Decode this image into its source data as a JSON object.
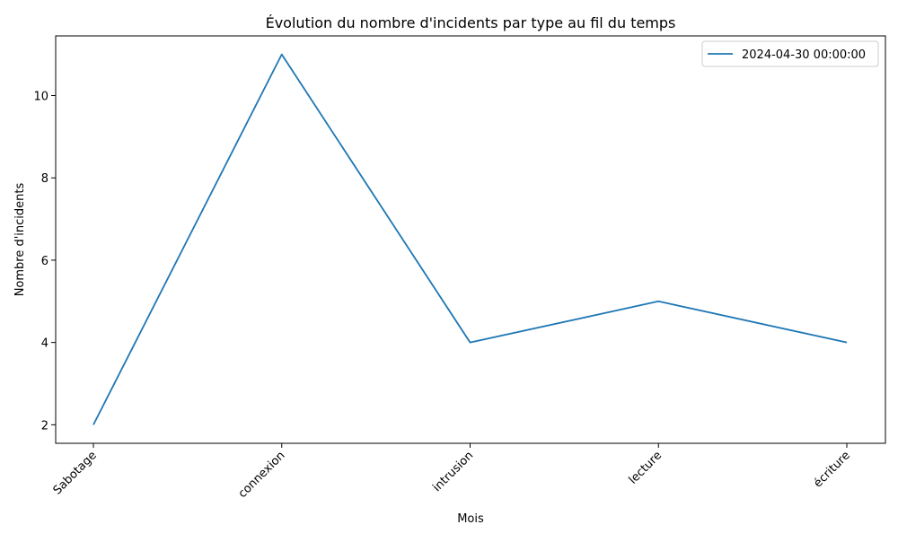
{
  "chart_data": {
    "type": "line",
    "title": "Évolution du nombre d'incidents par type au fil du temps",
    "xlabel": "Mois",
    "ylabel": "Nombre d'incidents",
    "categories": [
      "Sabotage",
      "connexion",
      "intrusion",
      "lecture",
      "écriture"
    ],
    "series": [
      {
        "name": "2024-04-30 00:00:00",
        "values": [
          2,
          11,
          4,
          5,
          4
        ],
        "color": "#1f77b4"
      }
    ],
    "yticks": [
      2,
      4,
      6,
      8,
      10
    ],
    "ylim": [
      1.55,
      11.45
    ],
    "grid": false,
    "legend": "top-right"
  }
}
